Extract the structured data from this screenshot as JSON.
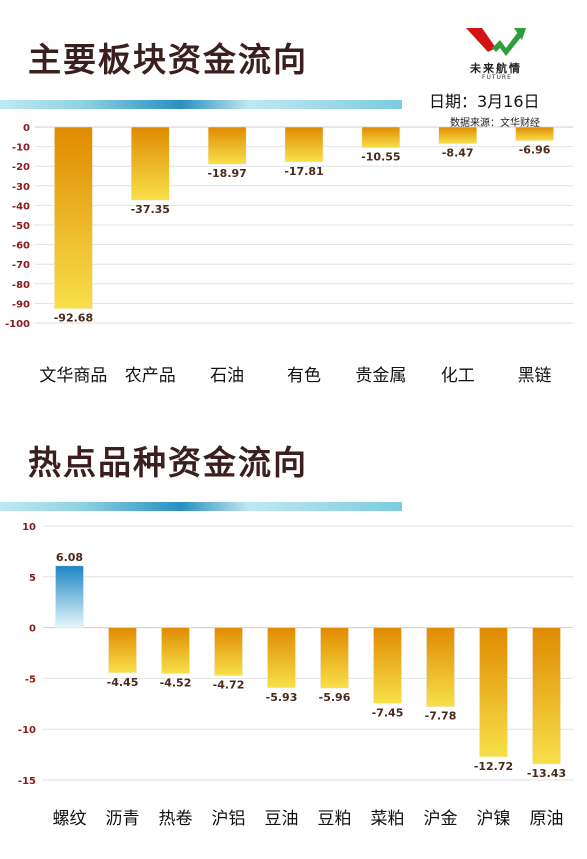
{
  "header": {
    "logo_text": "未来航情",
    "logo_sub": "FUTURE",
    "date_text": "日期：3月16日",
    "source_text": "数据来源：文华财经"
  },
  "colors": {
    "bar_negative_top": "#e08a00",
    "bar_negative_bottom": "#f7e04a",
    "bar_positive_top": "#1d86c4",
    "bar_positive_bottom": "#e6f6fb",
    "deco_left": "#8fd3e3",
    "deco_mid": "#2a8fc0",
    "tick_color": "#8b1a1a"
  },
  "chart_data": [
    {
      "type": "bar",
      "title": "主要板块资金流向",
      "categories": [
        "文华商品",
        "农产品",
        "石油",
        "有色",
        "贵金属",
        "化工",
        "黑链"
      ],
      "values": [
        -92.68,
        -37.35,
        -18.97,
        -17.81,
        -10.55,
        -8.47,
        -6.96
      ],
      "value_labels": [
        "-92.68",
        "-37.35",
        "-18.97",
        "-17.81",
        "-10.55",
        "-8.47",
        "-6.96"
      ],
      "y_ticks": [
        0,
        -10,
        -20,
        -30,
        -40,
        -50,
        -60,
        -70,
        -80,
        -90,
        -100
      ],
      "ylim": [
        -100,
        0
      ],
      "grid": true,
      "legend": "none"
    },
    {
      "type": "bar",
      "title": "热点品种资金流向",
      "categories": [
        "螺纹",
        "沥青",
        "热卷",
        "沪铝",
        "豆油",
        "豆粕",
        "菜粕",
        "沪金",
        "沪镍",
        "原油"
      ],
      "values": [
        6.08,
        -4.45,
        -4.52,
        -4.72,
        -5.93,
        -5.96,
        -7.45,
        -7.78,
        -12.72,
        -13.43
      ],
      "value_labels": [
        "6.08",
        "-4.45",
        "-4.52",
        "-4.72",
        "-5.93",
        "-5.96",
        "-7.45",
        "-7.78",
        "-12.72",
        "-13.43"
      ],
      "y_ticks": [
        10,
        5,
        0,
        -5,
        -10,
        -15
      ],
      "ylim": [
        -15,
        10
      ],
      "grid": true,
      "legend": "none"
    }
  ]
}
